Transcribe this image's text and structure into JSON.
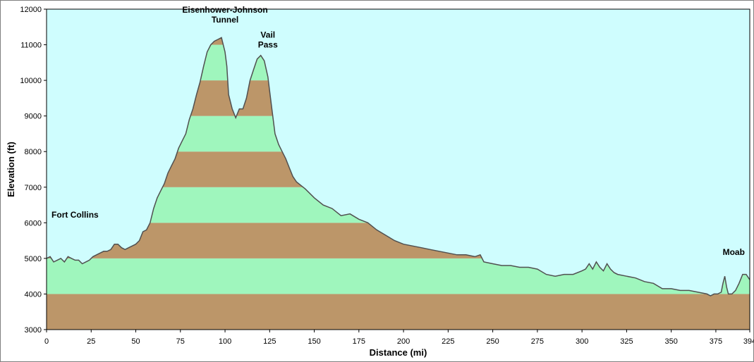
{
  "chart_data": {
    "type": "area",
    "xlabel": "Distance   (mi)",
    "ylabel": "Elevation (ft)",
    "xlim": [
      0,
      394
    ],
    "ylim": [
      3000,
      12000
    ],
    "x_ticks": [
      "0",
      "25",
      "50",
      "75",
      "100",
      "125",
      "150",
      "175",
      "200",
      "225",
      "250",
      "275",
      "300",
      "325",
      "350",
      "375",
      "394"
    ],
    "y_ticks": [
      "3000",
      "4000",
      "5000",
      "6000",
      "7000",
      "8000",
      "9000",
      "10000",
      "11000",
      "12000"
    ],
    "x_tick_values": [
      0,
      25,
      50,
      75,
      100,
      125,
      150,
      175,
      200,
      225,
      250,
      275,
      300,
      325,
      350,
      375,
      394
    ],
    "y_tick_values": [
      3000,
      4000,
      5000,
      6000,
      7000,
      8000,
      9000,
      10000,
      11000,
      12000
    ],
    "band_colors": [
      "#bc9669",
      "#9ff6bd"
    ],
    "band_edges": [
      3000,
      4000,
      5000,
      6000,
      7000,
      8000,
      9000,
      10000,
      11000,
      12000
    ],
    "sky_color": "#cffdfe",
    "line_color": "#505050",
    "annotations": [
      {
        "lines": [
          "Fort Collins"
        ],
        "x": 2,
        "y": 6150
      },
      {
        "lines": [
          "Eisenhower-Johnson",
          "Tunnel"
        ],
        "x": 100,
        "y": 11900
      },
      {
        "lines": [
          "Vail",
          "Pass"
        ],
        "x": 124,
        "y": 11200
      },
      {
        "lines": [
          "Moab"
        ],
        "x": 392,
        "y": 5100
      }
    ],
    "series": [
      {
        "x": [
          0,
          2,
          4,
          6,
          8,
          10,
          12,
          14,
          16,
          18,
          20,
          22,
          24,
          26,
          28,
          30,
          32,
          34,
          36,
          38,
          40,
          42,
          44,
          46,
          48,
          50,
          52,
          54,
          56,
          58,
          60,
          62,
          64,
          66,
          68,
          70,
          72,
          74,
          76,
          78,
          80,
          82,
          84,
          86,
          88,
          90,
          92,
          94,
          96,
          98,
          99,
          100,
          101,
          102,
          104,
          106,
          108,
          109,
          110,
          112,
          114,
          116,
          118,
          120,
          122,
          124,
          126,
          128,
          130,
          132,
          134,
          136,
          138,
          140,
          145,
          150,
          155,
          160,
          165,
          170,
          175,
          180,
          185,
          190,
          195,
          200,
          205,
          210,
          215,
          220,
          225,
          230,
          235,
          240,
          243,
          245,
          250,
          255,
          260,
          265,
          270,
          275,
          280,
          285,
          290,
          295,
          300,
          302,
          304,
          306,
          308,
          310,
          312,
          314,
          316,
          318,
          320,
          325,
          330,
          335,
          340,
          345,
          350,
          355,
          360,
          365,
          370,
          372,
          374,
          376,
          378,
          379,
          380,
          381,
          382,
          384,
          386,
          388,
          390,
          392,
          394
        ],
        "y": [
          5000,
          5050,
          4900,
          4950,
          5000,
          4900,
          5050,
          5000,
          4950,
          4950,
          4850,
          4900,
          4950,
          5050,
          5100,
          5150,
          5200,
          5200,
          5250,
          5400,
          5400,
          5300,
          5250,
          5300,
          5350,
          5400,
          5500,
          5750,
          5800,
          6000,
          6400,
          6700,
          6900,
          7100,
          7400,
          7600,
          7800,
          8100,
          8300,
          8500,
          8900,
          9200,
          9600,
          9950,
          10400,
          10800,
          11000,
          11100,
          11150,
          11200,
          11000,
          10800,
          10400,
          9600,
          9200,
          8950,
          9200,
          9200,
          9200,
          9500,
          10000,
          10300,
          10600,
          10700,
          10550,
          10100,
          9300,
          8500,
          8200,
          8000,
          7800,
          7550,
          7300,
          7150,
          6950,
          6700,
          6500,
          6400,
          6200,
          6250,
          6100,
          6000,
          5800,
          5650,
          5500,
          5400,
          5350,
          5300,
          5250,
          5200,
          5150,
          5100,
          5100,
          5050,
          5100,
          4900,
          4850,
          4800,
          4800,
          4750,
          4750,
          4700,
          4550,
          4500,
          4550,
          4550,
          4650,
          4700,
          4850,
          4700,
          4900,
          4750,
          4650,
          4850,
          4700,
          4600,
          4550,
          4500,
          4450,
          4350,
          4300,
          4150,
          4150,
          4100,
          4100,
          4050,
          4000,
          3950,
          4000,
          4000,
          4050,
          4300,
          4500,
          4200,
          4000,
          4000,
          4100,
          4300,
          4550,
          4550,
          4400
        ]
      }
    ]
  }
}
